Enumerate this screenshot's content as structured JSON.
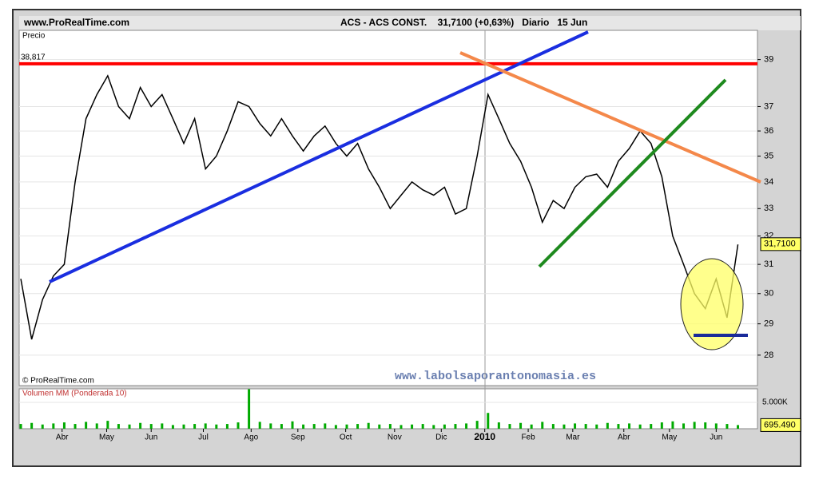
{
  "chart_data": {
    "type": "line",
    "site": "www.ProRealTime.com",
    "title": "ACS - ACS CONST.    31,7100 (+0,63%)   Diario   15 Jun",
    "y_label": "Precio",
    "copyright": "© ProRealTime.com",
    "watermark": "www.labolsaporantonomasia.es",
    "log_scale": true,
    "color": "#000000",
    "x": [
      0,
      1,
      2,
      3,
      4,
      5,
      6,
      7,
      8,
      9,
      10,
      11,
      12,
      13,
      14,
      15,
      16,
      17,
      18,
      19,
      20,
      21,
      22,
      23,
      24,
      25,
      26,
      27,
      28,
      29,
      30,
      31,
      32,
      33,
      34,
      35,
      36,
      37,
      38,
      39,
      40,
      41,
      42,
      43,
      44,
      45,
      46,
      47,
      48,
      49,
      50,
      51,
      52,
      53,
      54,
      55,
      56,
      57,
      58,
      59,
      60,
      61,
      62,
      63,
      64,
      65,
      66
    ],
    "values": [
      30.5,
      28.5,
      29.8,
      30.6,
      31.0,
      34.0,
      36.5,
      37.5,
      38.3,
      37.0,
      36.5,
      37.8,
      37.0,
      37.5,
      36.5,
      35.5,
      36.5,
      34.5,
      35.0,
      36.0,
      37.2,
      37.0,
      36.3,
      35.8,
      36.5,
      35.8,
      35.2,
      35.8,
      36.2,
      35.5,
      35.0,
      35.5,
      34.5,
      33.8,
      33.0,
      33.5,
      34.0,
      33.7,
      33.5,
      33.8,
      32.8,
      33.0,
      35.0,
      37.5,
      36.5,
      35.5,
      34.8,
      33.8,
      32.5,
      33.3,
      33.0,
      33.8,
      34.2,
      34.3,
      33.8,
      34.8,
      35.3,
      36.0,
      35.5,
      34.2,
      32.0,
      31.0,
      30.0,
      29.5,
      30.5,
      29.2,
      31.7
    ],
    "xlim": [
      -0.15,
      67.8
    ],
    "xticks": [
      {
        "value": 3.8,
        "label": "Abr"
      },
      {
        "value": 7.9,
        "label": "May"
      },
      {
        "value": 12.0,
        "label": "Jun"
      },
      {
        "value": 16.8,
        "label": "Jul"
      },
      {
        "value": 21.2,
        "label": "Ago"
      },
      {
        "value": 25.5,
        "label": "Sep"
      },
      {
        "value": 29.9,
        "label": "Oct"
      },
      {
        "value": 34.4,
        "label": "Nov"
      },
      {
        "value": 38.7,
        "label": "Dic"
      },
      {
        "value": 42.7,
        "label": "2010"
      },
      {
        "value": 46.7,
        "label": "Feb"
      },
      {
        "value": 50.8,
        "label": "Mar"
      },
      {
        "value": 55.5,
        "label": "Abr"
      },
      {
        "value": 59.7,
        "label": "May"
      },
      {
        "value": 64.0,
        "label": "Jun"
      }
    ],
    "ylim": [
      27.06,
      40.3
    ],
    "yticks": [
      28,
      29,
      30,
      31,
      32,
      33,
      34,
      35,
      36,
      37,
      39
    ],
    "resistance": {
      "value": 38.817,
      "label": "38,817",
      "color": "#ff0000"
    },
    "last_price": {
      "value": 31.71,
      "label": "31,7100"
    },
    "volume": {
      "label": "Volumen MM (Ponderada 10)",
      "color": "#00aa00",
      "values": [
        900,
        1100,
        800,
        1000,
        1200,
        900,
        1300,
        1000,
        1500,
        900,
        800,
        1100,
        900,
        1000,
        700,
        800,
        900,
        1000,
        800,
        900,
        1200,
        7500,
        1300,
        1000,
        900,
        1400,
        800,
        900,
        1000,
        700,
        800,
        900,
        1100,
        800,
        900,
        700,
        800,
        900,
        700,
        800,
        900,
        1000,
        1500,
        3000,
        1200,
        900,
        1100,
        800,
        1300,
        900,
        800,
        1000,
        900,
        800,
        1100,
        900,
        1000,
        800,
        900,
        1200,
        1400,
        1000,
        1300,
        1200,
        1000,
        900,
        695.49
      ],
      "ylim": [
        0,
        7580
      ],
      "yticks": [
        {
          "value": 5000,
          "label": "5.000K"
        }
      ],
      "last_volume": {
        "value": 695.49,
        "label": "695.490"
      }
    }
  }
}
